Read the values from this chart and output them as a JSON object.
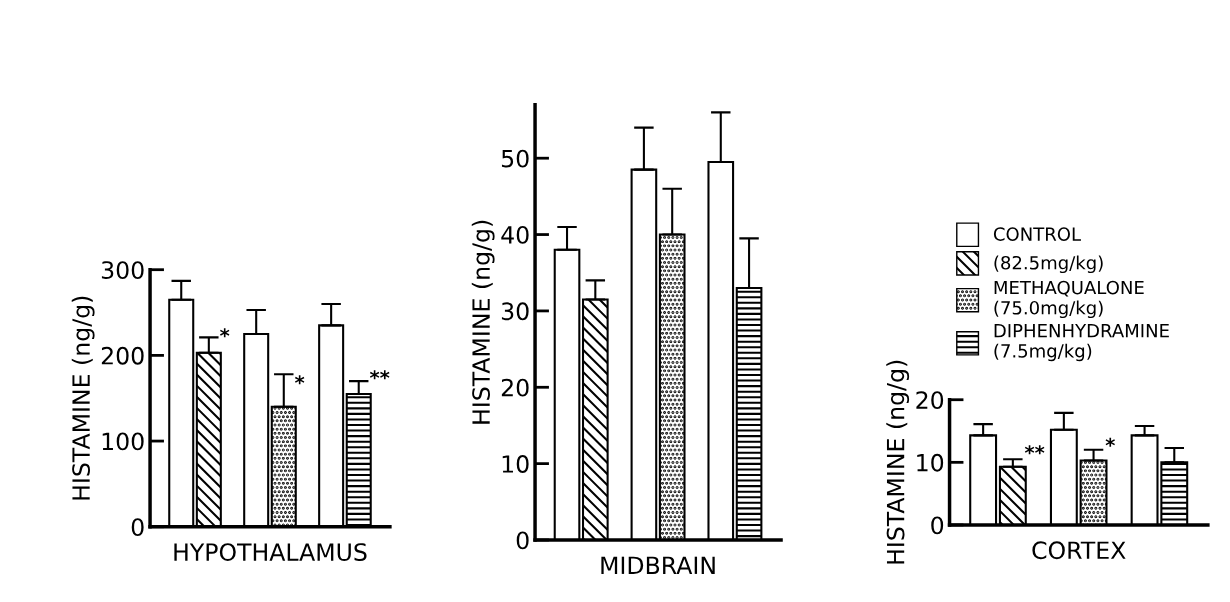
{
  "chart_data": [
    {
      "type": "bar",
      "xlabel": "HYPOTHALAMUS",
      "ylabel": "HISTAMINE (ng/g)",
      "categories": [
        null,
        null,
        null
      ],
      "ylim": [
        0,
        300
      ],
      "yticks": [
        0,
        100,
        200,
        300
      ],
      "grid": false,
      "series": [
        {
          "color": "#ffffff",
          "values": [
            265,
            225,
            235
          ],
          "errors": [
            22,
            28,
            25
          ]
        },
        {
          "color": "#000000",
          "values": [
            203,
            null,
            null
          ],
          "errors": [
            18,
            null,
            null
          ],
          "value_labels": [
            "*",
            null,
            null
          ]
        },
        {
          "color": "#000000",
          "values": [
            null,
            140,
            null
          ],
          "errors": [
            null,
            38,
            null
          ],
          "value_labels": [
            null,
            "*",
            null
          ]
        },
        {
          "color": "#000000",
          "values": [
            null,
            null,
            155
          ],
          "errors": [
            null,
            null,
            15
          ],
          "value_labels": [
            null,
            null,
            "**"
          ]
        }
      ]
    },
    {
      "type": "bar",
      "xlabel": "MIDBRAIN",
      "ylabel": "HISTAMINE (ng/g)",
      "categories": [
        null,
        null,
        null
      ],
      "ylim": [
        0,
        57
      ],
      "yticks": [
        0,
        10,
        20,
        30,
        40,
        50
      ],
      "grid": false,
      "series": [
        {
          "color": "#ffffff",
          "values": [
            38,
            48.5,
            49.5
          ],
          "errors": [
            3,
            5.5,
            6.5
          ]
        },
        {
          "color": "#000000",
          "values": [
            31.5,
            null,
            null
          ],
          "errors": [
            2.5,
            null,
            null
          ]
        },
        {
          "color": "#000000",
          "values": [
            null,
            40,
            null
          ],
          "errors": [
            null,
            6,
            null
          ]
        },
        {
          "color": "#000000",
          "values": [
            null,
            null,
            33
          ],
          "errors": [
            null,
            null,
            6.5
          ]
        }
      ]
    },
    {
      "type": "bar",
      "xlabel": "CORTEX",
      "ylabel": "HISTAMINE (ng/g)",
      "categories": [
        null,
        null,
        null
      ],
      "ylim": [
        0,
        20
      ],
      "yticks": [
        0,
        10,
        20
      ],
      "grid": false,
      "legend": "top",
      "series": [
        {
          "name": "CONTROL",
          "color": "#ffffff",
          "values": [
            14.3,
            15.2,
            14.3
          ],
          "errors": [
            1.8,
            2.7,
            1.5
          ]
        },
        {
          "name": "(82.5mg/kg)",
          "color": "#000000",
          "values": [
            9.3,
            null,
            null
          ],
          "errors": [
            1.2,
            null,
            null
          ],
          "value_labels": [
            "**",
            null,
            null
          ]
        },
        {
          "name": "METHAQUALONE\n(75.0mg/kg)",
          "color": "#000000",
          "values": [
            null,
            10.3,
            null
          ],
          "errors": [
            null,
            1.7,
            null
          ],
          "value_labels": [
            null,
            "*",
            null
          ]
        },
        {
          "name": "DIPHENHYDRAMINE\n(7.5mg/kg)",
          "color": "#000000",
          "values": [
            null,
            null,
            10
          ],
          "errors": [
            null,
            null,
            2.3
          ]
        }
      ]
    }
  ]
}
